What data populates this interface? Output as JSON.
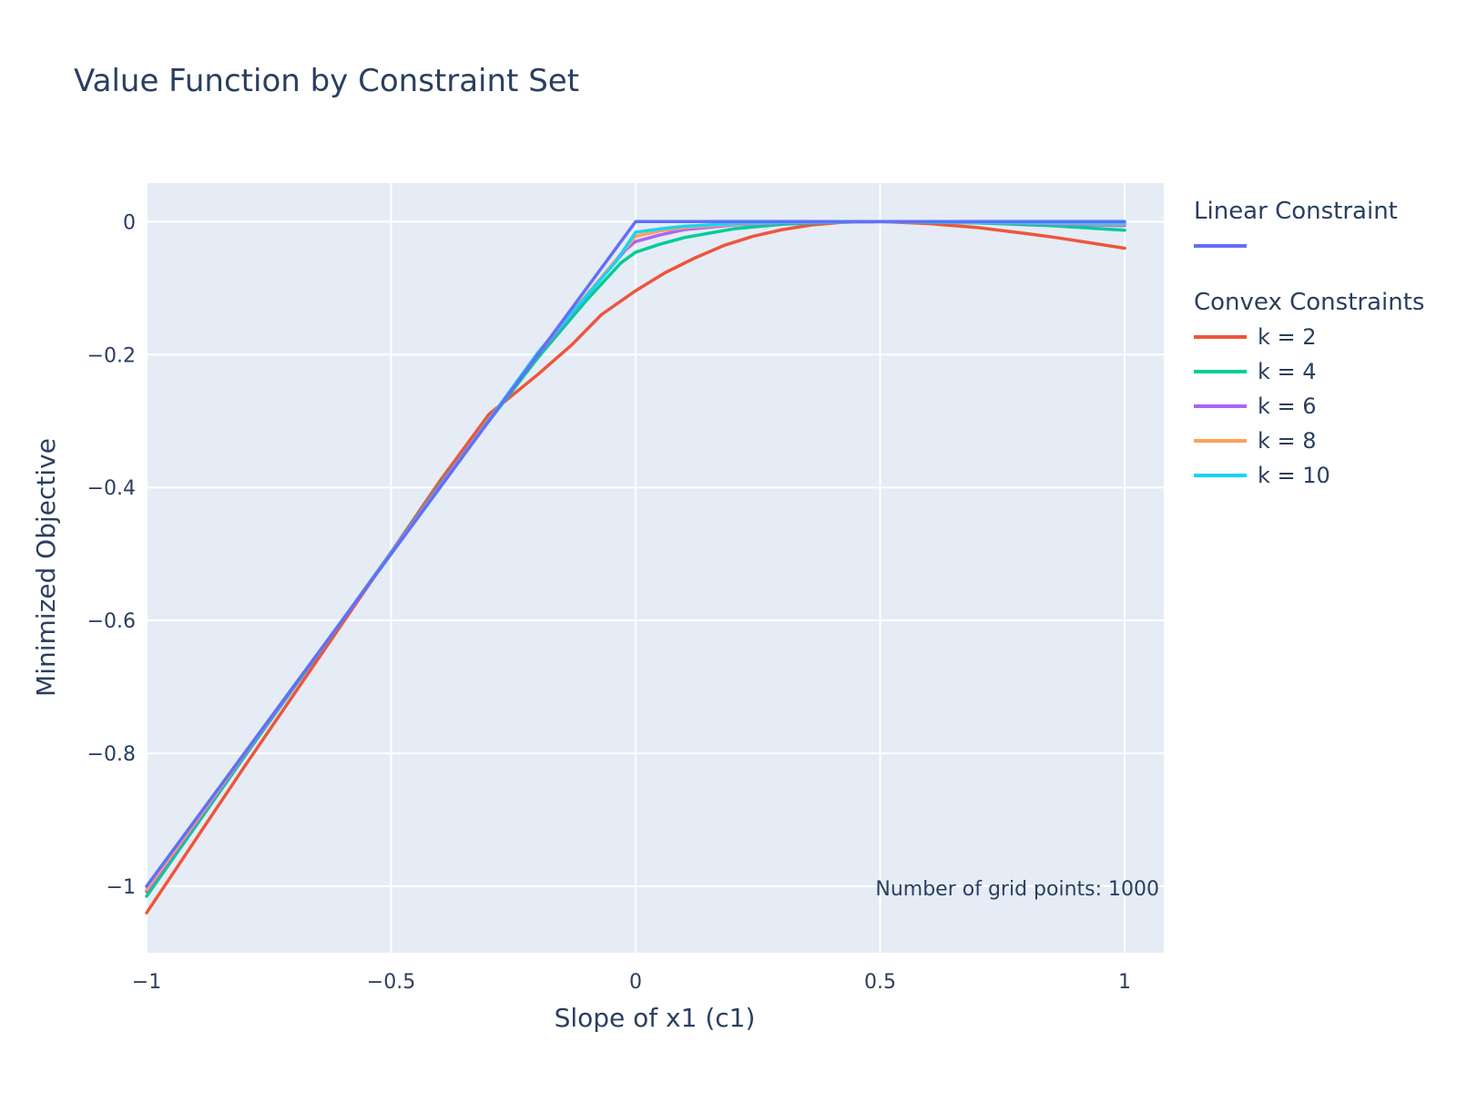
{
  "chart_data": {
    "type": "line",
    "title": "Value Function by Constraint Set",
    "xlabel": "Slope of x1 (c1)",
    "ylabel": "Minimized Objective",
    "xlim": [
      -1,
      1.08
    ],
    "ylim": [
      -1.1,
      0.058
    ],
    "x_ticks": [
      -1,
      -0.5,
      0,
      0.5,
      1
    ],
    "x_tick_labels": [
      "−1",
      "−0.5",
      "0",
      "0.5",
      "1"
    ],
    "y_ticks": [
      0,
      -0.2,
      -0.4,
      -0.6,
      -0.8,
      -1
    ],
    "y_tick_labels": [
      "0",
      "−0.2",
      "−0.4",
      "−0.6",
      "−0.8",
      "−1"
    ],
    "grid": true,
    "legend_position": "right",
    "annotation": "Number of grid points: 1000",
    "colors": {
      "plot_background": "#e5ecf6",
      "text": "#2a3f5f",
      "linear": "#636efa",
      "k2": "#ef553b",
      "k4": "#00cc96",
      "k6": "#ab63fa",
      "k8": "#ffa15a",
      "k10": "#19d3f3"
    },
    "legend_groups": [
      {
        "title": "Linear Constraint",
        "entries": [
          {
            "series": 0,
            "label": ""
          }
        ]
      },
      {
        "title": "Convex Constraints",
        "entries": [
          {
            "series": 1,
            "label": "k = 2"
          },
          {
            "series": 2,
            "label": "k = 4"
          },
          {
            "series": 3,
            "label": "k = 6"
          },
          {
            "series": 4,
            "label": "k = 8"
          },
          {
            "series": 5,
            "label": "k = 10"
          }
        ]
      }
    ],
    "series": [
      {
        "color": "#636efa",
        "x": [
          -1,
          0,
          1
        ],
        "y": [
          -1.0,
          0.0,
          0.0
        ]
      },
      {
        "name": "k = 2",
        "color": "#ef553b",
        "x": [
          -1,
          -0.8,
          -0.6,
          -0.4,
          -0.3,
          -0.2,
          -0.13,
          -0.07,
          0,
          0.06,
          0.12,
          0.18,
          0.24,
          0.3,
          0.36,
          0.42,
          0.5,
          0.6,
          0.7,
          0.8,
          0.86,
          1
        ],
        "y": [
          -1.04,
          -0.82,
          -0.605,
          -0.39,
          -0.29,
          -0.23,
          -0.185,
          -0.14,
          -0.104,
          -0.077,
          -0.055,
          -0.036,
          -0.022,
          -0.012,
          -0.005,
          -0.001,
          0,
          -0.003,
          -0.009,
          -0.018,
          -0.024,
          -0.04
        ]
      },
      {
        "name": "k = 4",
        "color": "#00cc96",
        "x": [
          -1,
          -0.8,
          -0.6,
          -0.4,
          -0.2,
          -0.1,
          -0.03,
          0,
          0.05,
          0.1,
          0.2,
          0.3,
          0.4,
          0.5,
          0.7,
          0.85,
          1
        ],
        "y": [
          -1.015,
          -0.805,
          -0.6,
          -0.395,
          -0.205,
          -0.118,
          -0.062,
          -0.046,
          -0.034,
          -0.024,
          -0.011,
          -0.004,
          -0.001,
          0,
          -0.002,
          -0.006,
          -0.013
        ]
      },
      {
        "name": "k = 6",
        "color": "#ab63fa",
        "x": [
          -1,
          -0.8,
          -0.6,
          -0.4,
          -0.2,
          -0.08,
          -0.02,
          0,
          0.05,
          0.1,
          0.2,
          0.3,
          0.5,
          0.7,
          1
        ],
        "y": [
          -1.008,
          -0.802,
          -0.6,
          -0.397,
          -0.2,
          -0.094,
          -0.042,
          -0.03,
          -0.02,
          -0.012,
          -0.005,
          -0.002,
          0,
          -0.001,
          -0.006
        ]
      },
      {
        "name": "k = 8",
        "color": "#ffa15a",
        "x": [
          -1,
          -0.8,
          -0.6,
          -0.4,
          -0.2,
          -0.05,
          0,
          0.05,
          0.1,
          0.2,
          0.3,
          0.5,
          0.7,
          1
        ],
        "y": [
          -1.005,
          -0.801,
          -0.6,
          -0.399,
          -0.198,
          -0.066,
          -0.022,
          -0.014,
          -0.009,
          -0.004,
          -0.001,
          0,
          -0.001,
          -0.004
        ]
      },
      {
        "name": "k = 10",
        "color": "#19d3f3",
        "x": [
          -1,
          -0.8,
          -0.6,
          -0.4,
          -0.2,
          -0.04,
          0,
          0.05,
          0.1,
          0.2,
          0.3,
          0.5,
          0.7,
          1
        ],
        "y": [
          -1.0,
          -0.8,
          -0.6,
          -0.4,
          -0.197,
          -0.06,
          -0.016,
          -0.011,
          -0.007,
          -0.003,
          -0.001,
          0,
          -0.001,
          -0.003
        ]
      }
    ]
  }
}
